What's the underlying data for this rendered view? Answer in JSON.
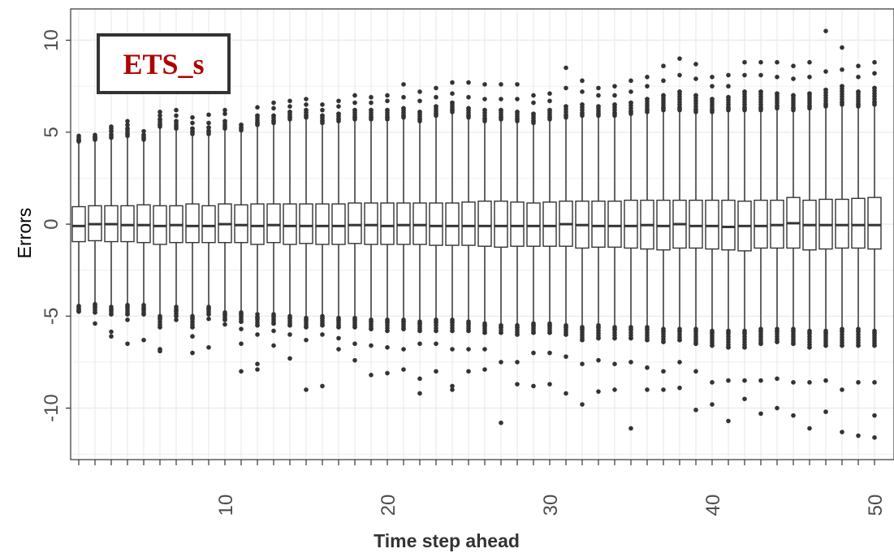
{
  "chart_data": {
    "type": "boxplot",
    "title": "",
    "label_box": "ETS_s",
    "xlabel": "Time step ahead",
    "ylabel": "Errors",
    "xlim": [
      0.5,
      51.2
    ],
    "ylim": [
      -12.8,
      11.7
    ],
    "x_ticks": [
      10,
      20,
      30,
      40,
      50
    ],
    "y_ticks": [
      10,
      5,
      0,
      -5,
      -10
    ],
    "grid": true,
    "colors": {
      "box_edge": "#333333",
      "points": "#333333",
      "grid": "#ebebeb",
      "label_text": "#b00000",
      "label_border": "#333333"
    },
    "steps": [
      {
        "x": 1,
        "q1": -0.95,
        "median": -0.1,
        "q3": 0.95,
        "lo": -4.4,
        "hi": 4.4,
        "out_hi": [
          4.7,
          4.55,
          4.6,
          4.8
        ],
        "out_lo": [
          -4.6,
          -4.75,
          -4.45,
          -4.7
        ]
      },
      {
        "x": 2,
        "q1": -0.9,
        "median": 0.0,
        "q3": 1.0,
        "lo": -4.3,
        "hi": 4.5,
        "out_hi": [
          4.6,
          4.75,
          4.7,
          4.85
        ],
        "out_lo": [
          -4.5,
          -4.8,
          -5.4,
          -4.35
        ]
      },
      {
        "x": 3,
        "q1": -0.95,
        "median": 0.0,
        "q3": 1.0,
        "lo": -4.4,
        "hi": 4.6,
        "out_hi": [
          4.8,
          5.05,
          5.2,
          5.3
        ],
        "out_lo": [
          -4.65,
          -4.9,
          -5.85,
          -6.1
        ]
      },
      {
        "x": 4,
        "q1": -0.95,
        "median": -0.05,
        "q3": 1.0,
        "lo": -4.3,
        "hi": 4.7,
        "out_hi": [
          4.9,
          5.2,
          5.4,
          5.6
        ],
        "out_lo": [
          -4.5,
          -4.9,
          -5.2,
          -6.5
        ]
      },
      {
        "x": 5,
        "q1": -1.0,
        "median": -0.05,
        "q3": 1.05,
        "lo": -4.3,
        "hi": 4.5,
        "out_hi": [
          4.7,
          4.85,
          5.05
        ],
        "out_lo": [
          -4.6,
          -4.9,
          -6.3
        ]
      },
      {
        "x": 6,
        "q1": -1.1,
        "median": -0.1,
        "q3": 1.0,
        "lo": -4.9,
        "hi": 5.2,
        "out_hi": [
          5.4,
          5.7,
          5.9,
          6.1
        ],
        "out_lo": [
          -5.1,
          -5.6,
          -6.8,
          -6.9
        ]
      },
      {
        "x": 7,
        "q1": -1.0,
        "median": -0.05,
        "q3": 1.0,
        "lo": -4.4,
        "hi": 5.1,
        "out_hi": [
          5.3,
          5.6,
          5.9,
          6.2
        ],
        "out_lo": [
          -4.7,
          -5.0,
          -5.2
        ]
      },
      {
        "x": 8,
        "q1": -1.0,
        "median": -0.1,
        "q3": 1.1,
        "lo": -4.9,
        "hi": 4.8,
        "out_hi": [
          5.0,
          5.2,
          5.5,
          5.8
        ],
        "out_lo": [
          -5.1,
          -5.6,
          -6.1,
          -7.0
        ]
      },
      {
        "x": 9,
        "q1": -1.0,
        "median": -0.1,
        "q3": 1.0,
        "lo": -4.4,
        "hi": 4.8,
        "out_hi": [
          5.0,
          5.25,
          5.5,
          5.95
        ],
        "out_lo": [
          -4.6,
          -4.9,
          -5.15,
          -6.7
        ]
      },
      {
        "x": 10,
        "q1": -1.0,
        "median": 0.0,
        "q3": 1.1,
        "lo": -4.7,
        "hi": 5.1,
        "out_hi": [
          5.3,
          5.6,
          6.0,
          6.2
        ],
        "out_lo": [
          -4.9,
          -5.2,
          -5.45
        ]
      },
      {
        "x": 11,
        "q1": -1.0,
        "median": -0.05,
        "q3": 1.05,
        "lo": -4.7,
        "hi": 5.0,
        "out_hi": [
          5.2,
          5.4
        ],
        "out_lo": [
          -4.9,
          -5.3,
          -5.7,
          -6.5,
          -8.0
        ]
      },
      {
        "x": 12,
        "q1": -1.1,
        "median": -0.1,
        "q3": 1.1,
        "lo": -4.8,
        "hi": 5.3,
        "out_hi": [
          5.5,
          5.9,
          6.35
        ],
        "out_lo": [
          -5.1,
          -5.5,
          -6.0,
          -7.6,
          -7.9
        ]
      },
      {
        "x": 13,
        "q1": -1.0,
        "median": -0.05,
        "q3": 1.1,
        "lo": -4.8,
        "hi": 5.4,
        "out_hi": [
          5.6,
          5.9,
          6.3,
          6.6
        ],
        "out_lo": [
          -5.0,
          -5.4,
          -5.8,
          -6.6
        ]
      },
      {
        "x": 14,
        "q1": -1.1,
        "median": -0.1,
        "q3": 1.1,
        "lo": -4.9,
        "hi": 5.6,
        "out_hi": [
          5.8,
          6.1,
          6.4,
          6.7
        ],
        "out_lo": [
          -5.1,
          -5.5,
          -6.0,
          -7.3
        ]
      },
      {
        "x": 15,
        "q1": -1.05,
        "median": -0.1,
        "q3": 1.1,
        "lo": -5.0,
        "hi": 5.7,
        "out_hi": [
          5.9,
          6.2,
          6.5,
          6.8
        ],
        "out_lo": [
          -5.2,
          -5.6,
          -6.3,
          -9.0
        ]
      },
      {
        "x": 16,
        "q1": -1.1,
        "median": -0.1,
        "q3": 1.1,
        "lo": -4.9,
        "hi": 5.4,
        "out_hi": [
          5.6,
          5.9,
          6.2,
          6.5
        ],
        "out_lo": [
          -5.1,
          -5.5,
          -6.0,
          -8.8
        ]
      },
      {
        "x": 17,
        "q1": -1.1,
        "median": -0.1,
        "q3": 1.1,
        "lo": -5.0,
        "hi": 5.5,
        "out_hi": [
          5.7,
          6.0,
          6.4,
          6.7
        ],
        "out_lo": [
          -5.2,
          -5.6,
          -6.2,
          -6.8
        ]
      },
      {
        "x": 18,
        "q1": -1.05,
        "median": -0.05,
        "q3": 1.15,
        "lo": -5.0,
        "hi": 5.6,
        "out_hi": [
          5.8,
          6.2,
          6.6,
          7.0
        ],
        "out_lo": [
          -5.2,
          -5.6,
          -6.5,
          -7.4
        ]
      },
      {
        "x": 19,
        "q1": -1.1,
        "median": -0.05,
        "q3": 1.15,
        "lo": -5.1,
        "hi": 5.6,
        "out_hi": [
          5.8,
          6.2,
          6.6,
          6.9
        ],
        "out_lo": [
          -5.3,
          -5.7,
          -6.6,
          -8.2
        ]
      },
      {
        "x": 20,
        "q1": -1.1,
        "median": -0.1,
        "q3": 1.15,
        "lo": -5.1,
        "hi": 5.6,
        "out_hi": [
          5.8,
          6.2,
          6.7,
          7.0
        ],
        "out_lo": [
          -5.3,
          -5.8,
          -6.7,
          -8.1
        ]
      },
      {
        "x": 21,
        "q1": -1.1,
        "median": -0.05,
        "q3": 1.15,
        "lo": -5.1,
        "hi": 5.7,
        "out_hi": [
          5.9,
          6.3,
          6.9,
          7.6
        ],
        "out_lo": [
          -5.3,
          -5.7,
          -6.8,
          -7.9
        ]
      },
      {
        "x": 22,
        "q1": -1.1,
        "median": -0.05,
        "q3": 1.15,
        "lo": -5.2,
        "hi": 5.5,
        "out_hi": [
          5.7,
          6.1,
          6.7,
          7.2
        ],
        "out_lo": [
          -5.4,
          -5.8,
          -6.5,
          -8.4,
          -9.2
        ]
      },
      {
        "x": 23,
        "q1": -1.15,
        "median": -0.1,
        "q3": 1.15,
        "lo": -5.1,
        "hi": 5.8,
        "out_hi": [
          6.0,
          6.4,
          6.9,
          7.4
        ],
        "out_lo": [
          -5.3,
          -5.8,
          -6.5,
          -8.0
        ]
      },
      {
        "x": 24,
        "q1": -1.15,
        "median": -0.1,
        "q3": 1.15,
        "lo": -5.1,
        "hi": 6.0,
        "out_hi": [
          6.2,
          6.6,
          7.1,
          7.7
        ],
        "out_lo": [
          -5.3,
          -5.8,
          -6.8,
          -8.8,
          -9.0
        ]
      },
      {
        "x": 25,
        "q1": -1.15,
        "median": -0.1,
        "q3": 1.2,
        "lo": -5.2,
        "hi": 5.7,
        "out_hi": [
          5.9,
          6.3,
          6.9,
          7.7
        ],
        "out_lo": [
          -5.4,
          -5.8,
          -6.8,
          -8.0
        ]
      },
      {
        "x": 26,
        "q1": -1.2,
        "median": -0.1,
        "q3": 1.25,
        "lo": -5.3,
        "hi": 5.5,
        "out_hi": [
          5.7,
          6.2,
          6.8,
          7.6
        ],
        "out_lo": [
          -5.5,
          -5.9,
          -6.8,
          -7.9
        ]
      },
      {
        "x": 27,
        "q1": -1.25,
        "median": -0.1,
        "q3": 1.25,
        "lo": -5.4,
        "hi": 5.6,
        "out_hi": [
          5.8,
          6.2,
          6.8,
          7.6
        ],
        "out_lo": [
          -5.6,
          -5.9,
          -7.5,
          -10.8
        ]
      },
      {
        "x": 28,
        "q1": -1.2,
        "median": -0.1,
        "q3": 1.2,
        "lo": -5.4,
        "hi": 5.5,
        "out_hi": [
          5.7,
          6.1,
          6.8,
          7.6
        ],
        "out_lo": [
          -5.6,
          -6.0,
          -7.5,
          -8.7
        ]
      },
      {
        "x": 29,
        "q1": -1.2,
        "median": -0.1,
        "q3": 1.15,
        "lo": -5.3,
        "hi": 5.4,
        "out_hi": [
          5.6,
          6.0,
          6.6,
          7.0
        ],
        "out_lo": [
          -5.5,
          -5.9,
          -7.0,
          -8.8
        ]
      },
      {
        "x": 30,
        "q1": -1.2,
        "median": -0.1,
        "q3": 1.2,
        "lo": -5.3,
        "hi": 5.6,
        "out_hi": [
          5.8,
          6.2,
          6.7,
          7.1
        ],
        "out_lo": [
          -5.5,
          -5.9,
          -7.0,
          -8.7
        ]
      },
      {
        "x": 31,
        "q1": -1.2,
        "median": 0.0,
        "q3": 1.25,
        "lo": -5.4,
        "hi": 5.7,
        "out_hi": [
          5.9,
          6.4,
          7.4,
          8.5
        ],
        "out_lo": [
          -5.6,
          -6.0,
          -7.2,
          -9.2
        ]
      },
      {
        "x": 32,
        "q1": -1.3,
        "median": -0.05,
        "q3": 1.25,
        "lo": -5.5,
        "hi": 5.8,
        "out_hi": [
          6.0,
          6.5,
          7.2,
          7.8
        ],
        "out_lo": [
          -5.7,
          -6.3,
          -7.6,
          -9.8
        ]
      },
      {
        "x": 33,
        "q1": -1.25,
        "median": -0.1,
        "q3": 1.25,
        "lo": -5.4,
        "hi": 5.8,
        "out_hi": [
          6.0,
          6.4,
          7.0,
          7.4
        ],
        "out_lo": [
          -5.6,
          -6.2,
          -7.4,
          -9.1
        ]
      },
      {
        "x": 34,
        "q1": -1.25,
        "median": -0.1,
        "q3": 1.25,
        "lo": -5.5,
        "hi": 5.8,
        "out_hi": [
          6.0,
          6.5,
          7.0,
          7.5
        ],
        "out_lo": [
          -5.7,
          -6.2,
          -7.6,
          -9.0
        ]
      },
      {
        "x": 35,
        "q1": -1.3,
        "median": -0.1,
        "q3": 1.3,
        "lo": -5.5,
        "hi": 5.9,
        "out_hi": [
          6.1,
          6.6,
          7.2,
          7.8
        ],
        "out_lo": [
          -5.7,
          -6.2,
          -7.5,
          -11.1
        ]
      },
      {
        "x": 36,
        "q1": -1.35,
        "median": -0.05,
        "q3": 1.3,
        "lo": -5.5,
        "hi": 6.0,
        "out_hi": [
          6.2,
          6.8,
          7.5,
          8.0
        ],
        "out_lo": [
          -5.7,
          -6.3,
          -7.8,
          -9.0
        ]
      },
      {
        "x": 37,
        "q1": -1.4,
        "median": -0.1,
        "q3": 1.3,
        "lo": -5.6,
        "hi": 6.1,
        "out_hi": [
          6.3,
          7.0,
          7.8,
          8.6
        ],
        "out_lo": [
          -5.8,
          -6.4,
          -8.0,
          -9.0
        ]
      },
      {
        "x": 38,
        "q1": -1.3,
        "median": 0.0,
        "q3": 1.3,
        "lo": -5.6,
        "hi": 6.1,
        "out_hi": [
          6.3,
          7.2,
          8.1,
          9.0
        ],
        "out_lo": [
          -5.8,
          -6.3,
          -7.5,
          -8.9
        ]
      },
      {
        "x": 39,
        "q1": -1.3,
        "median": -0.1,
        "q3": 1.3,
        "lo": -5.6,
        "hi": 6.0,
        "out_hi": [
          6.2,
          7.0,
          7.9,
          8.7
        ],
        "out_lo": [
          -5.8,
          -6.5,
          -8.0,
          -10.1
        ]
      },
      {
        "x": 40,
        "q1": -1.35,
        "median": -0.1,
        "q3": 1.3,
        "lo": -5.7,
        "hi": 6.0,
        "out_hi": [
          6.2,
          6.8,
          7.5,
          8.0
        ],
        "out_lo": [
          -5.9,
          -6.6,
          -8.6,
          -9.8
        ]
      },
      {
        "x": 41,
        "q1": -1.4,
        "median": -0.15,
        "q3": 1.3,
        "lo": -5.7,
        "hi": 6.1,
        "out_hi": [
          6.3,
          6.9,
          7.5,
          8.1
        ],
        "out_lo": [
          -5.9,
          -6.7,
          -8.5,
          -10.7
        ]
      },
      {
        "x": 42,
        "q1": -1.45,
        "median": -0.1,
        "q3": 1.25,
        "lo": -5.7,
        "hi": 6.1,
        "out_hi": [
          6.3,
          7.2,
          8.1,
          8.8
        ],
        "out_lo": [
          -5.9,
          -6.7,
          -8.5,
          -9.5
        ]
      },
      {
        "x": 43,
        "q1": -1.3,
        "median": -0.1,
        "q3": 1.3,
        "lo": -5.6,
        "hi": 6.1,
        "out_hi": [
          6.3,
          7.2,
          8.1,
          8.8
        ],
        "out_lo": [
          -5.8,
          -6.5,
          -8.5,
          -10.3
        ]
      },
      {
        "x": 44,
        "q1": -1.3,
        "median": -0.05,
        "q3": 1.3,
        "lo": -5.6,
        "hi": 6.2,
        "out_hi": [
          6.4,
          7.1,
          8.0,
          8.8
        ],
        "out_lo": [
          -5.8,
          -6.4,
          -8.4,
          -10.0
        ]
      },
      {
        "x": 45,
        "q1": -1.3,
        "median": 0.05,
        "q3": 1.45,
        "lo": -5.6,
        "hi": 6.1,
        "out_hi": [
          6.3,
          7.0,
          7.9,
          8.6
        ],
        "out_lo": [
          -5.8,
          -6.5,
          -8.6,
          -10.4
        ]
      },
      {
        "x": 46,
        "q1": -1.4,
        "median": -0.05,
        "q3": 1.3,
        "lo": -5.7,
        "hi": 6.2,
        "out_hi": [
          6.4,
          7.1,
          8.0,
          8.8
        ],
        "out_lo": [
          -5.9,
          -6.7,
          -8.6,
          -11.1
        ]
      },
      {
        "x": 47,
        "q1": -1.35,
        "median": -0.05,
        "q3": 1.35,
        "lo": -5.7,
        "hi": 6.3,
        "out_hi": [
          6.5,
          7.3,
          8.3,
          10.5
        ],
        "out_lo": [
          -5.9,
          -6.6,
          -8.5,
          -10.2
        ]
      },
      {
        "x": 48,
        "q1": -1.3,
        "median": -0.05,
        "q3": 1.35,
        "lo": -5.6,
        "hi": 6.4,
        "out_hi": [
          6.6,
          7.5,
          8.4,
          9.6
        ],
        "out_lo": [
          -5.8,
          -6.6,
          -9.0,
          -11.3
        ]
      },
      {
        "x": 49,
        "q1": -1.3,
        "median": -0.05,
        "q3": 1.4,
        "lo": -5.6,
        "hi": 6.3,
        "out_hi": [
          6.5,
          7.2,
          8.0,
          8.6
        ],
        "out_lo": [
          -5.8,
          -6.6,
          -8.6,
          -11.5
        ]
      },
      {
        "x": 50,
        "q1": -1.35,
        "median": -0.05,
        "q3": 1.45,
        "lo": -5.7,
        "hi": 6.4,
        "out_hi": [
          6.6,
          7.4,
          8.2,
          8.8
        ],
        "out_lo": [
          -5.9,
          -6.6,
          -8.6,
          -10.4,
          -11.6
        ]
      }
    ]
  }
}
